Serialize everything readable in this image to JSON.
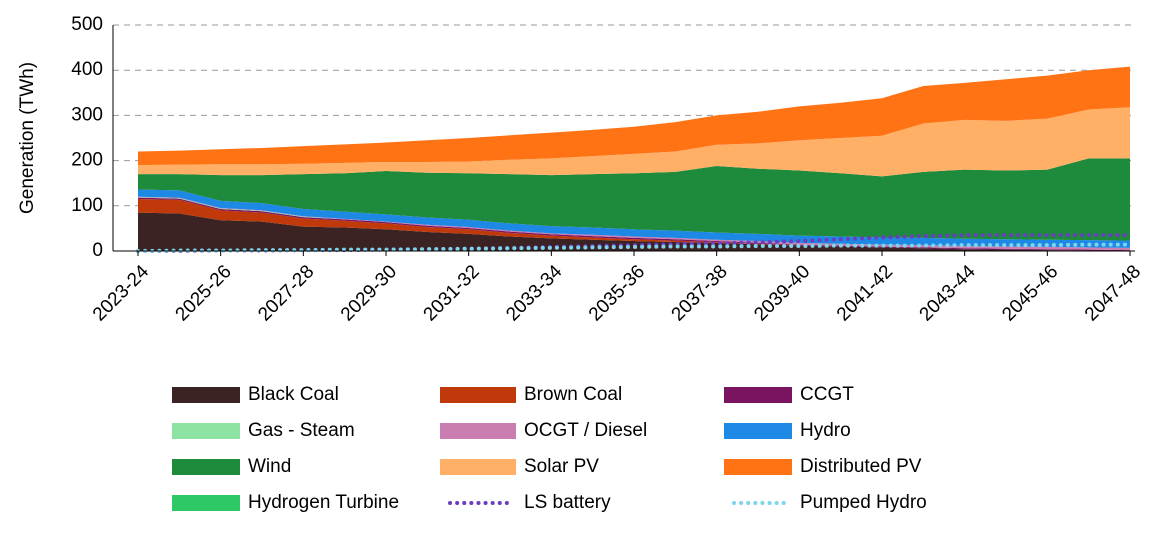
{
  "chart_data": {
    "type": "area",
    "y_label": "Generation (TWh)",
    "categories": [
      "2023-24",
      null,
      "2025-26",
      null,
      "2027-28",
      null,
      "2029-30",
      null,
      "2031-32",
      null,
      "2033-34",
      null,
      "2035-36",
      null,
      "2037-38",
      null,
      "2039-40",
      null,
      "2041-42",
      null,
      "2043-44",
      null,
      "2045-46",
      null,
      "2047-48"
    ],
    "ylim": [
      0,
      500
    ],
    "yticks": [
      0,
      100,
      200,
      300,
      400,
      500
    ],
    "grid": true,
    "series": [
      {
        "name": "Black Coal",
        "color": "#3b2323",
        "values": [
          85,
          83,
          68,
          65,
          54,
          52,
          48,
          42,
          38,
          32,
          28,
          25,
          22,
          20,
          18,
          15,
          12,
          10,
          8,
          6,
          4,
          3,
          2,
          1,
          0
        ]
      },
      {
        "name": "Brown Coal",
        "color": "#c0390b",
        "values": [
          30,
          30,
          22,
          20,
          18,
          15,
          13,
          11,
          10,
          8,
          6,
          5,
          4,
          3,
          2,
          1,
          0,
          0,
          0,
          0,
          0,
          0,
          0,
          0,
          0
        ]
      },
      {
        "name": "CCGT",
        "color": "#7b1460",
        "values": [
          3,
          3,
          3,
          3,
          3,
          3,
          3,
          3,
          3,
          3,
          3,
          3,
          3,
          3,
          2,
          2,
          2,
          2,
          2,
          2,
          2,
          2,
          2,
          2,
          2
        ]
      },
      {
        "name": "Gas - Steam",
        "color": "#8ee2a2",
        "values": [
          1,
          1,
          1,
          1,
          1,
          0,
          0,
          0,
          0,
          0,
          0,
          0,
          0,
          0,
          0,
          0,
          0,
          0,
          0,
          0,
          0,
          0,
          0,
          0,
          0
        ]
      },
      {
        "name": "OCGT / Diesel",
        "color": "#c97db0",
        "values": [
          1,
          1,
          1,
          1,
          1,
          1,
          1,
          2,
          2,
          2,
          2,
          3,
          3,
          3,
          3,
          4,
          4,
          4,
          4,
          5,
          5,
          5,
          5,
          5,
          5
        ]
      },
      {
        "name": "Hydro",
        "color": "#1e88e5",
        "values": [
          16,
          16,
          16,
          16,
          16,
          16,
          16,
          16,
          16,
          16,
          16,
          16,
          16,
          16,
          16,
          16,
          16,
          16,
          16,
          16,
          16,
          16,
          16,
          16,
          16
        ]
      },
      {
        "name": "Wind",
        "color": "#1e8a3c",
        "values": [
          34,
          36,
          57,
          62,
          77,
          85,
          96,
          99,
          103,
          109,
          113,
          118,
          124,
          130,
          147,
          144,
          144,
          140,
          135,
          146,
          153,
          152,
          155,
          181,
          182
        ]
      },
      {
        "name": "Solar PV",
        "color": "#ffb066",
        "values": [
          20,
          21,
          24,
          24,
          23,
          23,
          20,
          24,
          26,
          32,
          37,
          40,
          43,
          45,
          47,
          56,
          67,
          78,
          90,
          107,
          110,
          110,
          113,
          108,
          113
        ]
      },
      {
        "name": "Distributed PV",
        "color": "#ff7315",
        "values": [
          30,
          31,
          33,
          36,
          39,
          41,
          43,
          48,
          52,
          54,
          57,
          58,
          60,
          65,
          65,
          70,
          75,
          78,
          83,
          83,
          82,
          92,
          95,
          87,
          90
        ]
      },
      {
        "name": "Hydrogen Turbine",
        "color": "#2ec866",
        "values": [
          0,
          0,
          0,
          0,
          0,
          0,
          0,
          0,
          0,
          0,
          0,
          0,
          0,
          0,
          0,
          0,
          0,
          0,
          0,
          0,
          0,
          0,
          0,
          0,
          0
        ]
      },
      {
        "name": "LS battery",
        "color": "#6a3fbf",
        "line_style": "dotted",
        "values": [
          0,
          0,
          1,
          1,
          2,
          2,
          3,
          4,
          5,
          7,
          9,
          11,
          13,
          15,
          17,
          19,
          22,
          26,
          30,
          33,
          35,
          35,
          35,
          35,
          35
        ]
      },
      {
        "name": "Pumped Hydro",
        "color": "#7dd4ec",
        "line_style": "dotted",
        "values": [
          0,
          1,
          1,
          2,
          2,
          3,
          3,
          4,
          5,
          6,
          7,
          8,
          9,
          10,
          10,
          11,
          11,
          12,
          12,
          12,
          13,
          13,
          13,
          14,
          14
        ]
      }
    ]
  }
}
